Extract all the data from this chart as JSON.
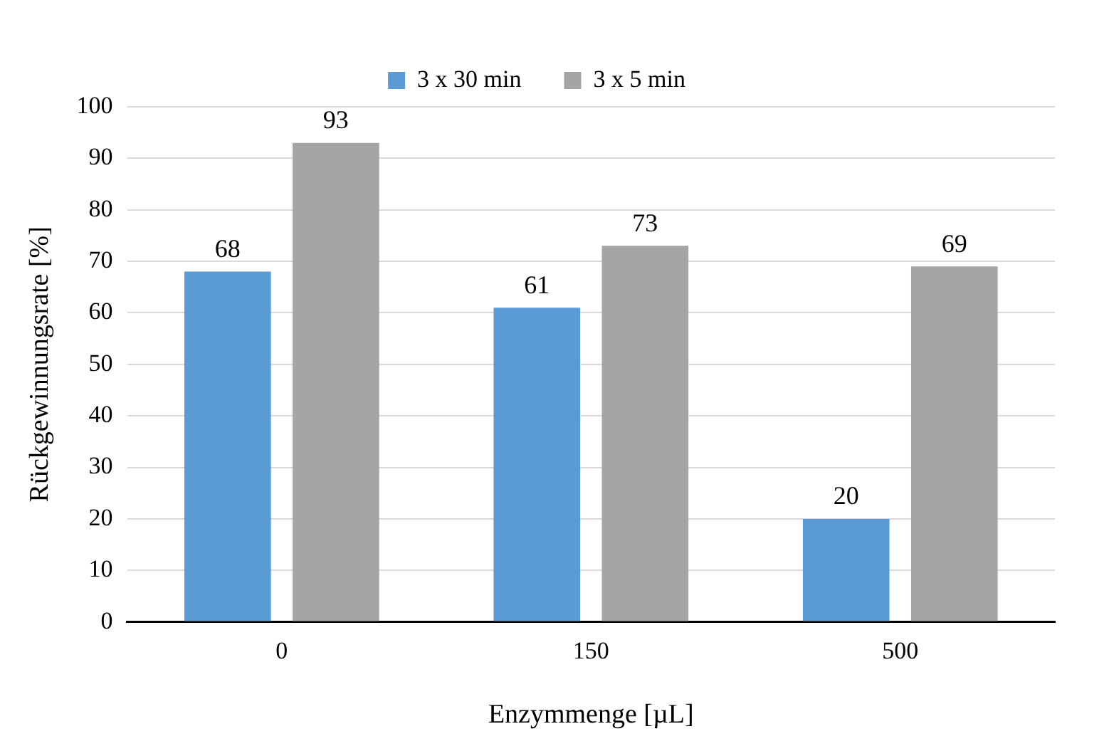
{
  "chart_data": {
    "type": "bar",
    "xlabel": "Enzymmenge [µL]",
    "ylabel": "Rückgewinnungsrate [%]",
    "categories": [
      "0",
      "150",
      "500"
    ],
    "series": [
      {
        "name": "3 x 30 min",
        "color": "#5b9bd5",
        "values": [
          68,
          61,
          20
        ]
      },
      {
        "name": "3 x 5 min",
        "color": "#a5a5a5",
        "values": [
          93,
          73,
          69
        ]
      }
    ],
    "ylim": [
      0,
      100
    ],
    "yticks": [
      0,
      10,
      20,
      30,
      40,
      50,
      60,
      70,
      80,
      90,
      100
    ],
    "grid": "y",
    "legend": "top",
    "data_labels": true
  }
}
